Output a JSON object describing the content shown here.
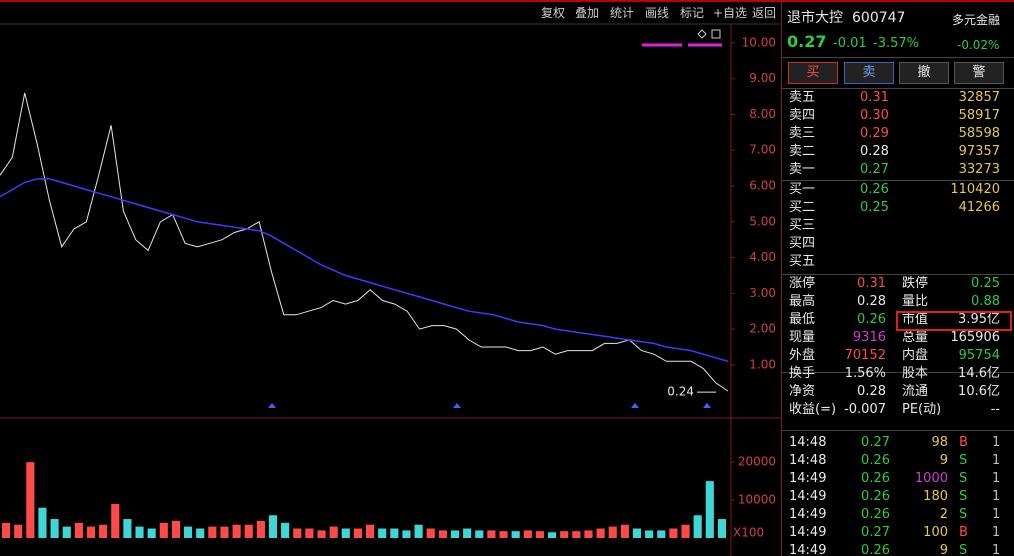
{
  "toolbar": {
    "buttons": [
      "复权",
      "叠加",
      "统计",
      "画线",
      "标记",
      "+自选",
      "返回"
    ]
  },
  "chart_data": [
    {
      "type": "line",
      "series": [
        {
          "color": "#e6e6e6",
          "values": [
            6.3,
            6.8,
            8.6,
            7.2,
            5.6,
            4.3,
            4.8,
            5.0,
            6.3,
            7.7,
            5.3,
            4.5,
            4.2,
            5.0,
            5.2,
            4.4,
            4.3,
            4.4,
            4.5,
            4.7,
            4.8,
            5.0,
            3.6,
            2.4,
            2.4,
            2.5,
            2.6,
            2.8,
            2.7,
            2.8,
            3.1,
            2.8,
            2.7,
            2.5,
            2.0,
            2.1,
            2.1,
            2.0,
            1.7,
            1.5,
            1.5,
            1.5,
            1.4,
            1.4,
            1.5,
            1.3,
            1.4,
            1.4,
            1.4,
            1.6,
            1.6,
            1.7,
            1.4,
            1.3,
            1.1,
            1.1,
            1.1,
            0.9,
            0.5,
            0.27
          ]
        },
        {
          "color": "#3c3cff",
          "values": [
            5.7,
            5.9,
            6.1,
            6.2,
            6.2,
            6.1,
            6.0,
            5.9,
            5.8,
            5.7,
            5.6,
            5.5,
            5.4,
            5.3,
            5.2,
            5.1,
            5.0,
            4.95,
            4.9,
            4.85,
            4.8,
            4.75,
            4.6,
            4.4,
            4.2,
            4.0,
            3.8,
            3.65,
            3.5,
            3.4,
            3.3,
            3.2,
            3.1,
            3.0,
            2.9,
            2.8,
            2.7,
            2.6,
            2.5,
            2.45,
            2.4,
            2.3,
            2.2,
            2.15,
            2.1,
            2.0,
            1.95,
            1.9,
            1.85,
            1.8,
            1.75,
            1.7,
            1.65,
            1.6,
            1.5,
            1.45,
            1.4,
            1.3,
            1.2,
            1.1
          ]
        }
      ],
      "ylim": [
        -0.26,
        10.5
      ],
      "yticks": [
        {
          "value": 1,
          "label": "1.00"
        },
        {
          "value": 2,
          "label": "2.00"
        },
        {
          "value": 3,
          "label": "3.00"
        },
        {
          "value": 4,
          "label": "4.00"
        },
        {
          "value": 5,
          "label": "5.00"
        },
        {
          "value": 6,
          "label": "6.00"
        },
        {
          "value": 7,
          "label": "7.00"
        },
        {
          "value": 8,
          "label": "8.00"
        },
        {
          "value": 9,
          "label": "9.00"
        },
        {
          "value": 10,
          "label": "10.00"
        }
      ],
      "annotations": [
        {
          "value": 0.24,
          "label": "0.24"
        }
      ]
    },
    {
      "type": "bar",
      "values": [
        4000,
        3500,
        20000,
        8000,
        5000,
        3000,
        4000,
        3000,
        3500,
        9000,
        5000,
        3000,
        2500,
        4000,
        4500,
        3000,
        2500,
        3000,
        3000,
        3500,
        3500,
        4500,
        6000,
        4000,
        2500,
        2500,
        2000,
        3000,
        2500,
        2500,
        3500,
        2500,
        2500,
        2000,
        3500,
        2500,
        2000,
        2000,
        2500,
        2000,
        2000,
        1800,
        1800,
        2000,
        1800,
        1500,
        1800,
        1800,
        2000,
        2500,
        3000,
        3500,
        2500,
        2000,
        2000,
        2500,
        3500,
        6000,
        15000,
        5000
      ],
      "up_color": "#ff4a4a",
      "down_color": "#3fd6d6",
      "ylim": [
        0,
        29000
      ],
      "yticks": [
        10000,
        20000
      ],
      "unit_label": "X100"
    }
  ],
  "quote_panel": {
    "name": "退市大控",
    "code": "600747",
    "sector": "多元金融",
    "price": "0.27",
    "change": "-0.01",
    "change_pct": "-3.57%",
    "sector_pct": "-0.02%",
    "order_buttons": [
      "买",
      "卖",
      "撤",
      "警"
    ],
    "asks": [
      [
        "卖五",
        "0.31",
        "32857"
      ],
      [
        "卖四",
        "0.30",
        "58917"
      ],
      [
        "卖三",
        "0.29",
        "58598"
      ],
      [
        "卖二",
        "0.28",
        "97357"
      ],
      [
        "卖一",
        "0.27",
        "33273"
      ]
    ],
    "bids": [
      [
        "买一",
        "0.26",
        "110420"
      ],
      [
        "买二",
        "0.25",
        "41266"
      ],
      [
        "买三"
      ],
      [
        "买四"
      ],
      [
        "买五"
      ]
    ],
    "stats": [
      [
        "涨停",
        "0.31",
        "跌停",
        "0.25"
      ],
      [
        "最高",
        "0.28",
        "量比",
        "0.88"
      ],
      [
        "最低",
        "0.26",
        "市值",
        "3.95亿"
      ],
      [
        "现量",
        "9316",
        "总量",
        "165906"
      ],
      [
        "外盘",
        "70152",
        "内盘",
        "95754"
      ],
      [
        "换手",
        "1.56%",
        "股本",
        "14.6亿"
      ],
      [
        "净资",
        "0.28",
        "流通",
        "10.6亿"
      ],
      [
        "收益(=)",
        "-0.007",
        "PE(动)",
        "--"
      ]
    ],
    "trades": [
      [
        "14:48",
        "0.27",
        "98",
        "B",
        "1"
      ],
      [
        "14:48",
        "0.26",
        "9",
        "S",
        "1"
      ],
      [
        "14:49",
        "0.26",
        "1000",
        "S",
        "1"
      ],
      [
        "14:49",
        "0.26",
        "180",
        "S",
        "1"
      ],
      [
        "14:49",
        "0.26",
        "2",
        "S",
        "1"
      ],
      [
        "14:49",
        "0.27",
        "100",
        "B",
        "1"
      ],
      [
        "14:49",
        "0.26",
        "9",
        "S",
        "1"
      ]
    ]
  }
}
